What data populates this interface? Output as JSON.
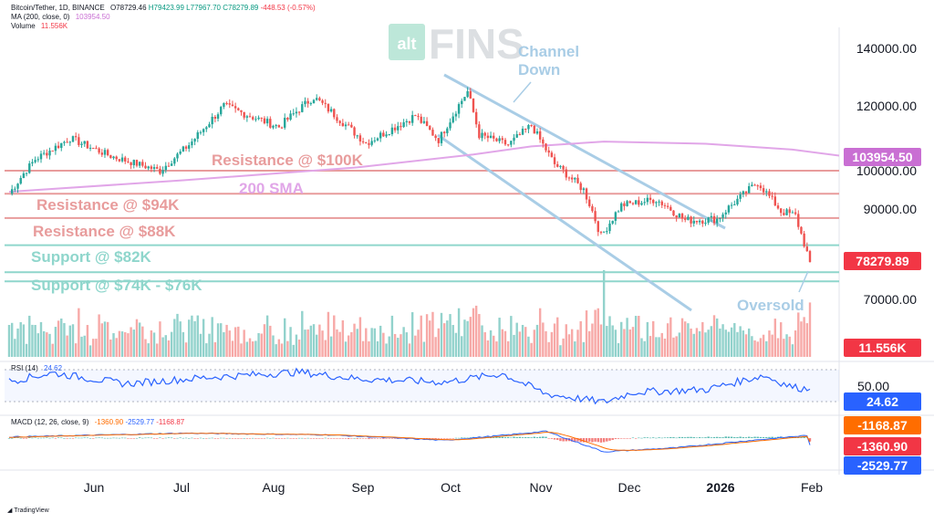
{
  "header": {
    "symbol_line": "Bitcoin/Tether, 1D, BINANCE",
    "ohlc": {
      "o": "O78729.46",
      "h": "H79423.99",
      "l": "L77967.70",
      "c": "C78279.89",
      "chg": "-448.53 (-0.57%)"
    },
    "ma_line": "MA (200, close, 0)",
    "ma_value": "103954.50",
    "volume_line": "Volume",
    "volume_value": "11.556K",
    "rsi_line": "RSI (14)",
    "rsi_value": "24.62",
    "macd_line": "MACD (12, 26, close, 9)",
    "macd_values": [
      "-1360.90",
      "-2529.77",
      "-1168.87"
    ]
  },
  "branding": {
    "logo_alt": "alt",
    "logo_fins": "FINS",
    "footer": "TradingView"
  },
  "colors": {
    "up": "#26a69a",
    "down": "#ef5350",
    "sma": "#e1a6e8",
    "resistance": "#e89c9c",
    "support": "#8fd6cc",
    "channel": "#a9cde6",
    "rsi": "#2962ff",
    "macd_line": "#2962ff",
    "signal_line": "#ff6d00"
  },
  "chart_data": {
    "type": "candlestick",
    "symbol": "Bitcoin/Tether",
    "interval": "1D",
    "x_labels": [
      "Jun",
      "Jul",
      "Aug",
      "Sep",
      "Oct",
      "Nov",
      "Dec",
      "2026",
      "Feb"
    ],
    "price_axis_ticks": [
      "140000.00",
      "120000.00",
      "100000.00",
      "90000.00",
      "70000.00"
    ],
    "price_path": [
      [
        "2025-05-01",
        94000
      ],
      [
        "2025-05-10",
        103500
      ],
      [
        "2025-05-22",
        110000
      ],
      [
        "2025-06-05",
        104500
      ],
      [
        "2025-06-22",
        100000
      ],
      [
        "2025-07-02",
        108000
      ],
      [
        "2025-07-14",
        120000
      ],
      [
        "2025-08-02",
        113500
      ],
      [
        "2025-08-14",
        123000
      ],
      [
        "2025-09-01",
        108500
      ],
      [
        "2025-09-18",
        117000
      ],
      [
        "2025-09-26",
        109500
      ],
      [
        "2025-10-06",
        125000
      ],
      [
        "2025-10-10",
        111000
      ],
      [
        "2025-10-20",
        108000
      ],
      [
        "2025-10-28",
        114000
      ],
      [
        "2025-11-05",
        102000
      ],
      [
        "2025-11-15",
        95000
      ],
      [
        "2025-11-21",
        84000
      ],
      [
        "2025-11-28",
        91000
      ],
      [
        "2025-12-10",
        92500
      ],
      [
        "2025-12-20",
        87500
      ],
      [
        "2025-12-31",
        87800
      ],
      [
        "2026-01-14",
        97000
      ],
      [
        "2026-01-22",
        89500
      ],
      [
        "2026-01-27",
        88500
      ],
      [
        "2026-02-01",
        78279.89
      ]
    ],
    "last_price": "78279.89",
    "sma_200": {
      "label": "200 SMA",
      "last": "103954.50"
    },
    "levels": [
      {
        "label": "Resistance @ $100K",
        "price": 100000,
        "kind": "resistance"
      },
      {
        "label": "Resistance @ $94K",
        "price": 94000,
        "kind": "resistance"
      },
      {
        "label": "Resistance @ $88K",
        "price": 88000,
        "kind": "resistance"
      },
      {
        "label": "Support @ $82K",
        "price": 82000,
        "kind": "support"
      },
      {
        "label": "Support @ $74K - $76K",
        "price_low": 74000,
        "price_high": 76000,
        "kind": "support"
      }
    ],
    "annotations": [
      "Channel Down",
      "Oversold"
    ],
    "volume": {
      "last": "11.556K"
    },
    "rsi": {
      "period": 14,
      "last": "24.62",
      "levels": [
        "50.00"
      ]
    },
    "macd": {
      "fast": 12,
      "slow": 26,
      "signal": 9,
      "macd_last": "-2529.77",
      "signal_last": "-1360.90",
      "hist_last": "-1168.87"
    }
  }
}
